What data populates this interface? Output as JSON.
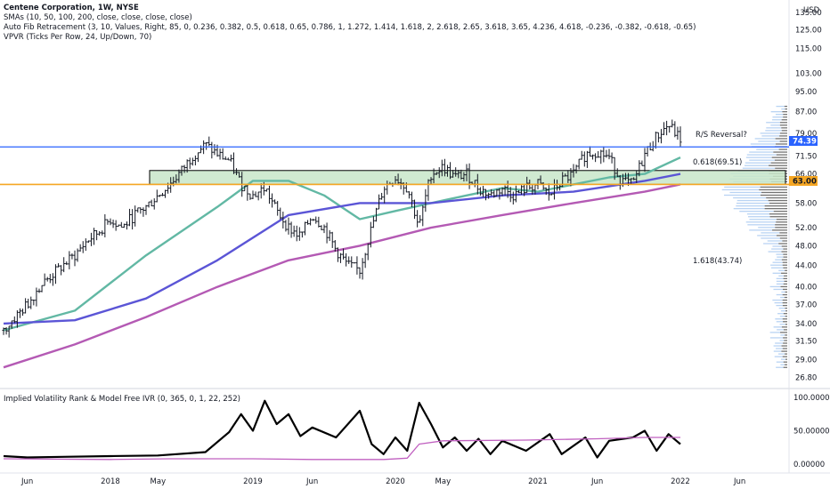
{
  "legend": {
    "title": "Centene Corporation, 1W, NYSE",
    "line2": "SMAs (10, 50, 100, 200, close, close, close, close)",
    "line3": "Auto Fib Retracement (3, 10, Values, Right, 85, 0, 0.236, 0.382, 0.5, 0.618, 0.65, 0.786, 1, 1.272, 1.414, 1.618, 2, 2.618, 2.65, 3.618, 3.65, 4.236, 4.618, -0.236, -0.382, -0.618, -0.65)",
    "line4": "VPVR (Ticks Per Row, 24, Up/Down, 70)"
  },
  "indicator": {
    "title": "Implied Volatility Rank & Model Free IVR (0, 365, 0, 1, 22, 252)"
  },
  "currency": "USD",
  "annotations": {
    "rs_reversal": "R/S Reversal?",
    "fib_618": "0.618(69.51)",
    "fib_1618": "1.618(43.74)"
  },
  "price_tags": {
    "blue": "74.39",
    "orange": "63.00"
  },
  "colors": {
    "candles": "#131722",
    "sma50": "#62b8a4",
    "sma100": "#5b55d6",
    "sma200": "#b45ab4",
    "resistance": "#2962ff",
    "support": "#f5a623",
    "zone_fill": "#c8e6c9",
    "iv_line": "#000000",
    "ivr_line": "#c060c0",
    "vpvr_up": "#a8c8f0",
    "vpvr_down": "#444444"
  },
  "chart_data": [
    {
      "type": "line",
      "name": "price-panel",
      "y_axis": {
        "scale": "log",
        "ylim": [
          26.0,
          135.0
        ],
        "ticks": [
          "135.00",
          "125.00",
          "115.00",
          "103.00",
          "95.00",
          "87.00",
          "79.00",
          "71.50",
          "66.00",
          "58.00",
          "52.00",
          "48.00",
          "44.00",
          "40.00",
          "37.00",
          "34.00",
          "31.50",
          "29.00",
          "26.80"
        ]
      },
      "x_axis": {
        "range": [
          "2017-04",
          "2022-10"
        ],
        "ticks": [
          {
            "label": "Jun",
            "date": "2017-06"
          },
          {
            "label": "2018",
            "date": "2018-01"
          },
          {
            "label": "May",
            "date": "2018-05"
          },
          {
            "label": "2019",
            "date": "2019-01"
          },
          {
            "label": "Jun",
            "date": "2019-06"
          },
          {
            "label": "2020",
            "date": "2020-01"
          },
          {
            "label": "May",
            "date": "2020-05"
          },
          {
            "label": "2021",
            "date": "2021-01"
          },
          {
            "label": "Jun",
            "date": "2021-06"
          },
          {
            "label": "2022",
            "date": "2022-01"
          },
          {
            "label": "Jun",
            "date": "2022-06"
          }
        ]
      },
      "price_path": [
        [
          "2017-04",
          33
        ],
        [
          "2017-05",
          35
        ],
        [
          "2017-06",
          37
        ],
        [
          "2017-07",
          40
        ],
        [
          "2017-08",
          42
        ],
        [
          "2017-09",
          44
        ],
        [
          "2017-10",
          46
        ],
        [
          "2017-11",
          49
        ],
        [
          "2017-12",
          51
        ],
        [
          "2018-01",
          54
        ],
        [
          "2018-02",
          52
        ],
        [
          "2018-03",
          55
        ],
        [
          "2018-04",
          57
        ],
        [
          "2018-05",
          60
        ],
        [
          "2018-06",
          63
        ],
        [
          "2018-07",
          67
        ],
        [
          "2018-08",
          72
        ],
        [
          "2018-09",
          75
        ],
        [
          "2018-10",
          72
        ],
        [
          "2018-11",
          70
        ],
        [
          "2018-12",
          63
        ],
        [
          "2019-01",
          60
        ],
        [
          "2019-02",
          62
        ],
        [
          "2019-03",
          56
        ],
        [
          "2019-04",
          52
        ],
        [
          "2019-05",
          50
        ],
        [
          "2019-06",
          55
        ],
        [
          "2019-07",
          52
        ],
        [
          "2019-08",
          47
        ],
        [
          "2019-09",
          44
        ],
        [
          "2019-10",
          43
        ],
        [
          "2019-11",
          52
        ],
        [
          "2019-12",
          62
        ],
        [
          "2020-01",
          65
        ],
        [
          "2020-02",
          62
        ],
        [
          "2020-03",
          52
        ],
        [
          "2020-04",
          66
        ],
        [
          "2020-05",
          68
        ],
        [
          "2020-06",
          65
        ],
        [
          "2020-07",
          66
        ],
        [
          "2020-08",
          62
        ],
        [
          "2020-09",
          60
        ],
        [
          "2020-10",
          62
        ],
        [
          "2020-11",
          60
        ],
        [
          "2020-12",
          62
        ],
        [
          "2021-01",
          63
        ],
        [
          "2021-02",
          60
        ],
        [
          "2021-03",
          64
        ],
        [
          "2021-04",
          66
        ],
        [
          "2021-05",
          72
        ],
        [
          "2021-06",
          73
        ],
        [
          "2021-07",
          71
        ],
        [
          "2021-08",
          64
        ],
        [
          "2021-09",
          63
        ],
        [
          "2021-10",
          72
        ],
        [
          "2021-11",
          78
        ],
        [
          "2021-12",
          82
        ],
        [
          "2022-01",
          77
        ]
      ],
      "series": [
        {
          "name": "SMA 50",
          "values": [
            [
              "2017-04",
              33
            ],
            [
              "2017-10",
              36
            ],
            [
              "2018-04",
              46
            ],
            [
              "2018-10",
              57
            ],
            [
              "2019-01",
              64
            ],
            [
              "2019-04",
              64
            ],
            [
              "2019-07",
              60
            ],
            [
              "2019-10",
              54
            ],
            [
              "2020-01",
              56
            ],
            [
              "2020-04",
              58
            ],
            [
              "2020-07",
              60
            ],
            [
              "2020-10",
              62
            ],
            [
              "2021-01",
              61
            ],
            [
              "2021-04",
              63
            ],
            [
              "2021-07",
              65
            ],
            [
              "2021-10",
              66
            ],
            [
              "2022-01",
              71
            ]
          ]
        },
        {
          "name": "SMA 100",
          "values": [
            [
              "2017-04",
              34
            ],
            [
              "2017-10",
              34.5
            ],
            [
              "2018-04",
              38
            ],
            [
              "2018-10",
              45
            ],
            [
              "2019-04",
              55
            ],
            [
              "2019-10",
              58
            ],
            [
              "2020-04",
              58
            ],
            [
              "2020-10",
              60
            ],
            [
              "2021-04",
              61
            ],
            [
              "2021-10",
              64
            ],
            [
              "2022-01",
              66
            ]
          ]
        },
        {
          "name": "SMA 200",
          "values": [
            [
              "2017-04",
              28
            ],
            [
              "2017-10",
              31
            ],
            [
              "2018-04",
              35
            ],
            [
              "2018-10",
              40
            ],
            [
              "2019-04",
              45
            ],
            [
              "2019-10",
              48
            ],
            [
              "2020-04",
              52
            ],
            [
              "2020-10",
              55
            ],
            [
              "2021-04",
              58
            ],
            [
              "2021-10",
              61
            ],
            [
              "2022-01",
              63
            ]
          ]
        }
      ],
      "levels": {
        "resistance": 74.39,
        "support": 63.0,
        "zone": [
          63.0,
          67.0
        ]
      }
    },
    {
      "type": "line",
      "name": "iv-panel",
      "y_axis": {
        "ylim": [
          0,
          100
        ],
        "ticks": [
          "100.00000",
          "50.00000",
          "0.00000"
        ]
      },
      "series": [
        {
          "name": "IVR",
          "values": [
            [
              "2017-04",
              12
            ],
            [
              "2017-06",
              10
            ],
            [
              "2017-09",
              11
            ],
            [
              "2018-01",
              12
            ],
            [
              "2018-05",
              13
            ],
            [
              "2018-09",
              18
            ],
            [
              "2018-11",
              48
            ],
            [
              "2018-12",
              75
            ],
            [
              "2019-01",
              50
            ],
            [
              "2019-02",
              95
            ],
            [
              "2019-03",
              60
            ],
            [
              "2019-04",
              75
            ],
            [
              "2019-05",
              42
            ],
            [
              "2019-06",
              55
            ],
            [
              "2019-08",
              40
            ],
            [
              "2019-10",
              80
            ],
            [
              "2019-11",
              30
            ],
            [
              "2019-12",
              15
            ],
            [
              "2020-01",
              40
            ],
            [
              "2020-02",
              20
            ],
            [
              "2020-03",
              92
            ],
            [
              "2020-04",
              60
            ],
            [
              "2020-05",
              25
            ],
            [
              "2020-06",
              40
            ],
            [
              "2020-07",
              20
            ],
            [
              "2020-08",
              38
            ],
            [
              "2020-09",
              15
            ],
            [
              "2020-10",
              35
            ],
            [
              "2020-12",
              20
            ],
            [
              "2021-02",
              45
            ],
            [
              "2021-03",
              15
            ],
            [
              "2021-05",
              40
            ],
            [
              "2021-06",
              10
            ],
            [
              "2021-07",
              35
            ],
            [
              "2021-09",
              40
            ],
            [
              "2021-10",
              50
            ],
            [
              "2021-11",
              20
            ],
            [
              "2021-12",
              45
            ],
            [
              "2022-01",
              30
            ]
          ]
        },
        {
          "name": "Model Free IVR",
          "values": [
            [
              "2017-04",
              8
            ],
            [
              "2018-01",
              7
            ],
            [
              "2018-06",
              8
            ],
            [
              "2019-01",
              8
            ],
            [
              "2019-06",
              7
            ],
            [
              "2019-12",
              7
            ],
            [
              "2020-02",
              9
            ],
            [
              "2020-03",
              30
            ],
            [
              "2020-05",
              35
            ],
            [
              "2020-12",
              36
            ],
            [
              "2021-06",
              38
            ],
            [
              "2021-10",
              40
            ],
            [
              "2022-01",
              40
            ]
          ]
        }
      ]
    }
  ]
}
